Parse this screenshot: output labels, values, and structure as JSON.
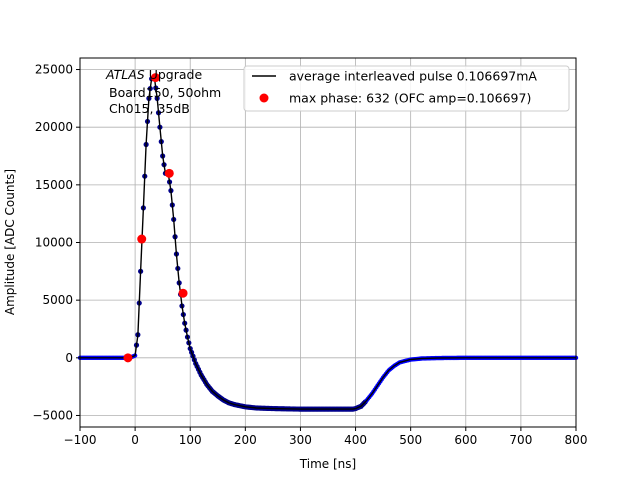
{
  "chart_data": {
    "type": "scatter",
    "title": "",
    "xlabel": "Time [ns]",
    "ylabel": "Amplitude [ADC Counts]",
    "xlim": [
      -100,
      800
    ],
    "ylim": [
      -6000,
      26000
    ],
    "xticks": [
      -100,
      0,
      100,
      200,
      300,
      400,
      500,
      600,
      700,
      800
    ],
    "xtick_labels": [
      "−100",
      "0",
      "100",
      "200",
      "300",
      "400",
      "500",
      "600",
      "700",
      "800"
    ],
    "yticks": [
      -5000,
      0,
      5000,
      10000,
      15000,
      20000,
      25000
    ],
    "ytick_labels": [
      "−5000",
      "0",
      "5000",
      "10000",
      "15000",
      "20000",
      "25000"
    ],
    "grid": true,
    "legend_position": "top-right",
    "annotation": {
      "line1_italic": "ATLAS",
      "line1_rest": " Upgrade",
      "line2": "Board150, 50ohm",
      "line3": "Ch015, 35dB"
    },
    "series": [
      {
        "name": "average interleaved pulse 0.106697mA",
        "kind": "line+markers",
        "line_color": "#000000",
        "marker_color": "#00008b",
        "marker_color_alt": "#0000ff",
        "x": [
          -100,
          -60,
          -30,
          -10,
          0,
          5,
          10,
          15,
          20,
          25,
          30,
          35,
          40,
          45,
          50,
          55,
          60,
          65,
          70,
          75,
          80,
          85,
          90,
          95,
          100,
          110,
          120,
          130,
          140,
          150,
          160,
          170,
          180,
          200,
          220,
          250,
          300,
          350,
          380,
          395,
          400,
          410,
          420,
          430,
          440,
          450,
          460,
          470,
          480,
          500,
          520,
          550,
          600,
          700,
          800
        ],
        "y": [
          0,
          0,
          0,
          0,
          200,
          2000,
          7500,
          13000,
          18500,
          22500,
          24200,
          24300,
          22500,
          20000,
          17500,
          16000,
          16000,
          14500,
          12000,
          9000,
          6500,
          4500,
          3000,
          1800,
          800,
          -500,
          -1500,
          -2300,
          -2900,
          -3300,
          -3650,
          -3900,
          -4050,
          -4250,
          -4350,
          -4400,
          -4450,
          -4450,
          -4450,
          -4450,
          -4400,
          -4200,
          -3700,
          -3100,
          -2400,
          -1700,
          -1100,
          -700,
          -400,
          -150,
          -60,
          -20,
          0,
          0,
          0
        ]
      },
      {
        "name": "max phase: 632 (OFC amp=0.106697)",
        "kind": "markers",
        "color": "#ff0000",
        "x": [
          -13,
          12,
          37,
          62,
          87
        ],
        "y": [
          0,
          10300,
          24300,
          16000,
          5600
        ]
      }
    ]
  }
}
